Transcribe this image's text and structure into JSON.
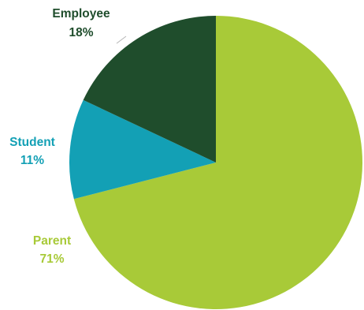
{
  "chart_data": {
    "type": "pie",
    "slices": [
      {
        "label": "Parent",
        "value": 71,
        "value_label": "71%",
        "color": "#a8ca38"
      },
      {
        "label": "Student",
        "value": 11,
        "value_label": "11%",
        "color": "#13a0b5"
      },
      {
        "label": "Employee",
        "value": 18,
        "value_label": "18%",
        "color": "#1f4d2c"
      }
    ],
    "title": "",
    "legend": "none"
  }
}
